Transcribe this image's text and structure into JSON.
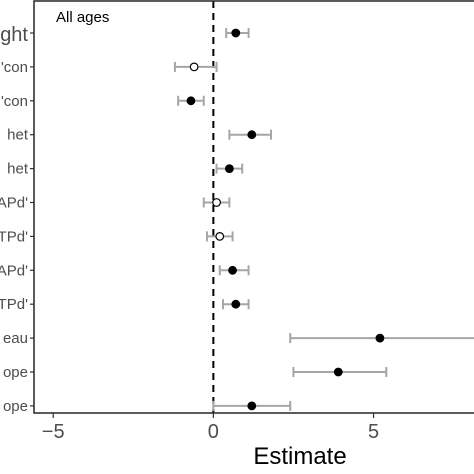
{
  "chart_data": {
    "type": "scatter",
    "title": "",
    "annotation": "All ages",
    "xlabel": "Estimate",
    "ylabel": "",
    "xlim": [
      -5.6,
      8.2
    ],
    "x_ticks": [
      -5,
      0,
      5
    ],
    "reference_line": 0,
    "grid": false,
    "rows": [
      {
        "label": "ght",
        "estimate": 0.7,
        "ci_low": 0.4,
        "ci_high": 1.1,
        "filled": true
      },
      {
        "label": "'con",
        "estimate": -0.6,
        "ci_low": -1.2,
        "ci_high": 0.1,
        "filled": false
      },
      {
        "label": "'con",
        "estimate": -0.7,
        "ci_low": -1.1,
        "ci_high": -0.3,
        "filled": true
      },
      {
        "label": "het",
        "estimate": 1.2,
        "ci_low": 0.5,
        "ci_high": 1.8,
        "filled": true
      },
      {
        "label": "het",
        "estimate": 0.5,
        "ci_low": 0.1,
        "ci_high": 0.9,
        "filled": true
      },
      {
        "label": "APd'",
        "estimate": 0.1,
        "ci_low": -0.3,
        "ci_high": 0.5,
        "filled": false
      },
      {
        "label": "TPd'",
        "estimate": 0.2,
        "ci_low": -0.2,
        "ci_high": 0.6,
        "filled": false
      },
      {
        "label": "APd'",
        "estimate": 0.6,
        "ci_low": 0.2,
        "ci_high": 1.1,
        "filled": true
      },
      {
        "label": "TPd'",
        "estimate": 0.7,
        "ci_low": 0.3,
        "ci_high": 1.1,
        "filled": true
      },
      {
        "label": "eau",
        "estimate": 5.2,
        "ci_low": 2.4,
        "ci_high": 8.2,
        "filled": true
      },
      {
        "label": "ope",
        "estimate": 3.9,
        "ci_low": 2.5,
        "ci_high": 5.4,
        "filled": true
      },
      {
        "label": "ope",
        "estimate": 1.2,
        "ci_low": 0.0,
        "ci_high": 2.4,
        "filled": true
      }
    ],
    "colors": {
      "ci": "#a6a6a6",
      "point": "#000000",
      "panel_border": "#333333",
      "refline": "#000000",
      "label": "#4d4d4d"
    }
  }
}
